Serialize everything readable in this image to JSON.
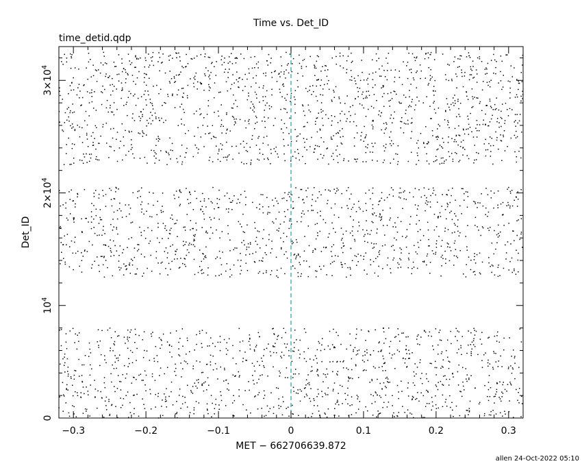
{
  "chart_data": {
    "type": "scatter",
    "title": "Time vs. Det_ID",
    "subtitle": "time_detid.qdp",
    "xlabel": "MET − 662706639.872",
    "ylabel": "Det_ID",
    "xlim": [
      -0.32,
      0.32
    ],
    "ylim": [
      0,
      33000
    ],
    "x_ticks": [
      {
        "value": -0.3,
        "label": "−0.3"
      },
      {
        "value": -0.2,
        "label": "−0.2"
      },
      {
        "value": -0.1,
        "label": "−0.1"
      },
      {
        "value": 0,
        "label": "0"
      },
      {
        "value": 0.1,
        "label": "0.1"
      },
      {
        "value": 0.2,
        "label": "0.2"
      },
      {
        "value": 0.3,
        "label": "0.3"
      }
    ],
    "y_ticks": [
      {
        "value": 0,
        "base": "0",
        "exp": ""
      },
      {
        "value": 10000,
        "base": "10",
        "exp": "4"
      },
      {
        "value": 20000,
        "base": "2×10",
        "exp": "4"
      },
      {
        "value": 30000,
        "base": "3×10",
        "exp": "4"
      }
    ],
    "reference_line": {
      "x": 0,
      "style": "dashed",
      "color": "#2a9d9d"
    },
    "series": [
      {
        "marker": "dot",
        "color": "#000000",
        "bands": [
          {
            "y_range": [
              0,
              8000
            ],
            "x_range": [
              -0.32,
              0.32
            ],
            "count": 1100
          },
          {
            "y_range": [
              12500,
              20500
            ],
            "x_range": [
              -0.32,
              0.32
            ],
            "count": 1100
          },
          {
            "y_range": [
              22500,
              32500
            ],
            "x_range": [
              -0.32,
              0.32
            ],
            "count": 1500
          }
        ]
      }
    ]
  },
  "footer": {
    "stamp": "allen 24-Oct-2022 05:10"
  }
}
